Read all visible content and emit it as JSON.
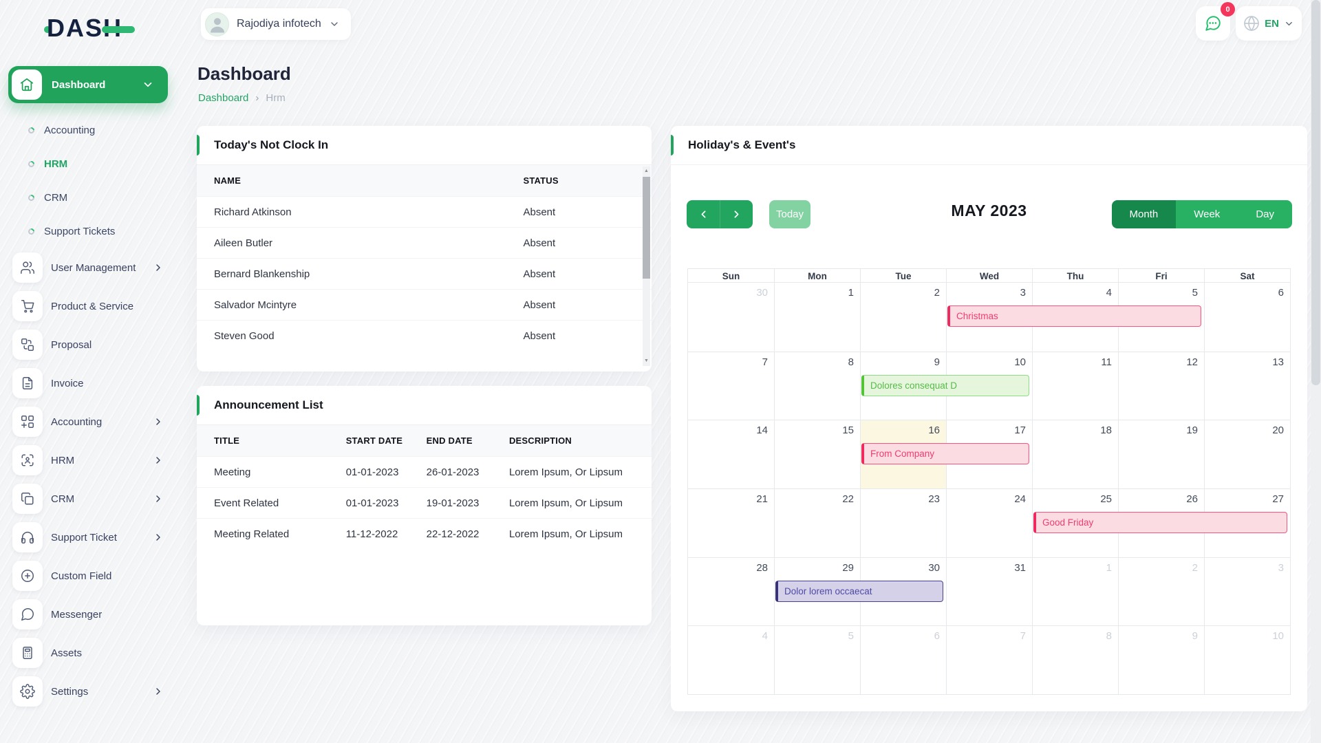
{
  "topbar": {
    "logo": "DASH",
    "company": "Rajodiya infotech",
    "messages_badge": "0",
    "language": "EN"
  },
  "page": {
    "title": "Dashboard",
    "breadcrumb": {
      "root": "Dashboard",
      "current": "Hrm"
    }
  },
  "ui": {
    "scroll_up": "▲",
    "scroll_down": "▼",
    "breadcrumb_separator": "›"
  },
  "sidebar": {
    "items": [
      {
        "label": "Dashboard",
        "icon": "home",
        "type": "active",
        "chevron": "down"
      },
      {
        "label": "Accounting",
        "type": "sub"
      },
      {
        "label": "HRM",
        "type": "sub",
        "active": true
      },
      {
        "label": "CRM",
        "type": "sub"
      },
      {
        "label": "Support Tickets",
        "type": "sub"
      },
      {
        "label": "User Management",
        "icon": "users",
        "chevron": "right"
      },
      {
        "label": "Product & Service",
        "icon": "cart"
      },
      {
        "label": "Proposal",
        "icon": "proposal"
      },
      {
        "label": "Invoice",
        "icon": "invoice"
      },
      {
        "label": "Accounting",
        "icon": "accounting",
        "chevron": "right"
      },
      {
        "label": "HRM",
        "icon": "hrm",
        "chevron": "right"
      },
      {
        "label": "CRM",
        "icon": "crm",
        "chevron": "right"
      },
      {
        "label": "Support Ticket",
        "icon": "support",
        "chevron": "right"
      },
      {
        "label": "Custom Field",
        "icon": "custom-field"
      },
      {
        "label": "Messenger",
        "icon": "messenger"
      },
      {
        "label": "Assets",
        "icon": "assets"
      },
      {
        "label": "Settings",
        "icon": "settings",
        "chevron": "right"
      }
    ]
  },
  "clockin_card": {
    "title": "Today's Not Clock In",
    "columns": [
      "NAME",
      "STATUS"
    ],
    "rows": [
      {
        "name": "Richard Atkinson",
        "status": "Absent"
      },
      {
        "name": "Aileen Butler",
        "status": "Absent"
      },
      {
        "name": "Bernard Blankenship",
        "status": "Absent"
      },
      {
        "name": "Salvador Mcintyre",
        "status": "Absent"
      },
      {
        "name": "Steven Good",
        "status": "Absent"
      }
    ]
  },
  "announcement_card": {
    "title": "Announcement List",
    "columns": [
      "TITLE",
      "START DATE",
      "END DATE",
      "DESCRIPTION"
    ],
    "rows": [
      {
        "title": "Meeting",
        "start": "01-01-2023",
        "end": "26-01-2023",
        "description": "Lorem Ipsum, Or Lipsum"
      },
      {
        "title": "Event Related",
        "start": "01-01-2023",
        "end": "19-01-2023",
        "description": "Lorem Ipsum, Or Lipsum"
      },
      {
        "title": "Meeting Related",
        "start": "11-12-2022",
        "end": "22-12-2022",
        "description": "Lorem Ipsum, Or Lipsum"
      }
    ]
  },
  "calendar_card": {
    "title": "Holiday's & Event's",
    "month_title": "MAY 2023",
    "toolbar": {
      "today_label": "Today",
      "views": [
        "Month",
        "Week",
        "Day"
      ],
      "active_view": "Month"
    },
    "weekdays": [
      "Sun",
      "Mon",
      "Tue",
      "Wed",
      "Thu",
      "Fri",
      "Sat"
    ],
    "weeks": [
      [
        {
          "d": "30",
          "muted": true
        },
        {
          "d": "1"
        },
        {
          "d": "2"
        },
        {
          "d": "3"
        },
        {
          "d": "4"
        },
        {
          "d": "5"
        },
        {
          "d": "6"
        }
      ],
      [
        {
          "d": "7"
        },
        {
          "d": "8"
        },
        {
          "d": "9"
        },
        {
          "d": "10"
        },
        {
          "d": "11"
        },
        {
          "d": "12"
        },
        {
          "d": "13"
        }
      ],
      [
        {
          "d": "14"
        },
        {
          "d": "15"
        },
        {
          "d": "16",
          "today": true
        },
        {
          "d": "17"
        },
        {
          "d": "18"
        },
        {
          "d": "19"
        },
        {
          "d": "20"
        }
      ],
      [
        {
          "d": "21"
        },
        {
          "d": "22"
        },
        {
          "d": "23"
        },
        {
          "d": "24"
        },
        {
          "d": "25"
        },
        {
          "d": "26"
        },
        {
          "d": "27"
        }
      ],
      [
        {
          "d": "28"
        },
        {
          "d": "29"
        },
        {
          "d": "30"
        },
        {
          "d": "31"
        },
        {
          "d": "1",
          "muted": true
        },
        {
          "d": "2",
          "muted": true
        },
        {
          "d": "3",
          "muted": true
        }
      ],
      [
        {
          "d": "4",
          "muted": true
        },
        {
          "d": "5",
          "muted": true
        },
        {
          "d": "6",
          "muted": true
        },
        {
          "d": "7",
          "muted": true
        },
        {
          "d": "8",
          "muted": true
        },
        {
          "d": "9",
          "muted": true
        },
        {
          "d": "10",
          "muted": true
        }
      ]
    ],
    "events": [
      {
        "label": "Christmas",
        "week": 0,
        "col": 3,
        "span": 3,
        "color": "pink"
      },
      {
        "label": "Dolores consequat D",
        "week": 1,
        "col": 2,
        "span": 2,
        "color": "green"
      },
      {
        "label": "From Company",
        "week": 2,
        "col": 2,
        "span": 2,
        "color": "pink"
      },
      {
        "label": "Good Friday",
        "week": 3,
        "col": 4,
        "span": 3,
        "color": "pink"
      },
      {
        "label": "Dolor lorem occaecat",
        "week": 4,
        "col": 1,
        "span": 2,
        "color": "purple"
      }
    ]
  },
  "colors": {
    "accent_green": "#21a55e",
    "active_view_green": "#17884c",
    "badge_pink": "#f5365c",
    "event_pink": "#f02a5e",
    "event_green": "#54c437",
    "event_purple": "#45418f",
    "today_cell_yellow": "#fcf7e1"
  }
}
